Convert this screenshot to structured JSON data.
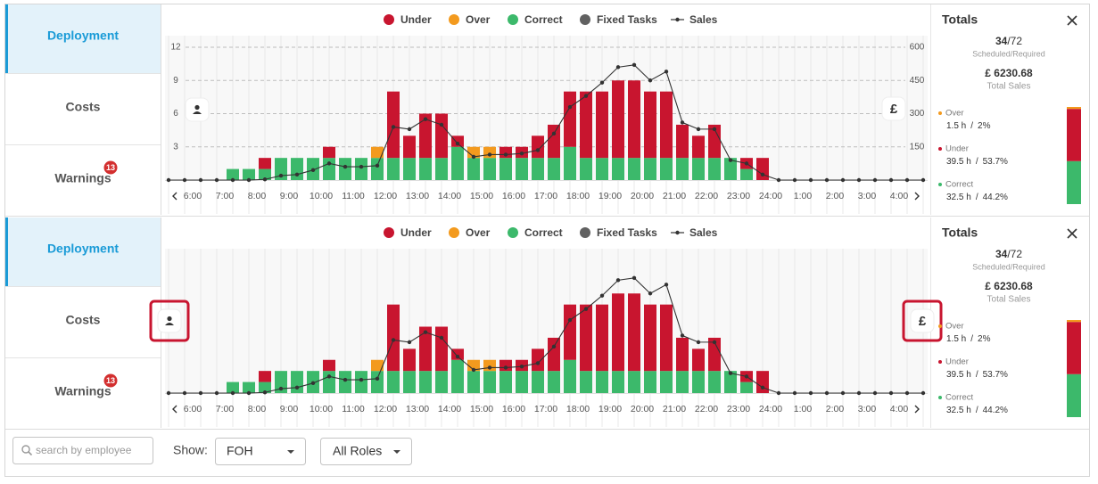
{
  "panels": [
    {
      "tabs": [
        {
          "label": "Deployment",
          "active": true
        },
        {
          "label": "Costs"
        },
        {
          "label": "Warnings",
          "badge": 13
        }
      ],
      "chart": {
        "type": "bar",
        "stacked": true,
        "x_labels": [
          "6:00",
          "7:00",
          "8:00",
          "9:00",
          "10:00",
          "11:00",
          "12:00",
          "13:00",
          "14:00",
          "15:00",
          "16:00",
          "17:00",
          "18:00",
          "19:00",
          "20:00",
          "21:00",
          "22:00",
          "23:00",
          "24:00",
          "1:00",
          "2:00",
          "3:00",
          "4:00"
        ],
        "series": [
          {
            "name": "Under",
            "color": "#c8152f",
            "values": [
              0,
              0,
              1,
              0,
              0,
              0,
              1,
              0,
              0,
              0,
              6,
              2,
              4,
              4,
              1,
              0,
              0,
              1,
              1,
              2,
              3,
              5,
              6,
              6,
              7,
              7,
              6,
              6,
              3,
              2,
              3,
              0,
              1,
              2
            ]
          },
          {
            "name": "Over",
            "color": "#f39a1e",
            "values": [
              0,
              0,
              0,
              0,
              0,
              0,
              0,
              0,
              0,
              1,
              0,
              0,
              0,
              0,
              0,
              1,
              1,
              0,
              0,
              0,
              0,
              0,
              0,
              0,
              0,
              0,
              0,
              0,
              0,
              0,
              0,
              0,
              0,
              0
            ]
          },
          {
            "name": "Correct",
            "color": "#3cb96b",
            "values": [
              1,
              1,
              1,
              2,
              2,
              2,
              2,
              2,
              2,
              2,
              2,
              2,
              2,
              2,
              3,
              2,
              2,
              2,
              2,
              2,
              2,
              3,
              2,
              2,
              2,
              2,
              2,
              2,
              2,
              2,
              2,
              2,
              1,
              0
            ]
          },
          {
            "name": "Fixed Tasks",
            "color": "#616161"
          }
        ],
        "line": {
          "name": "Sales",
          "color": "#333333",
          "axis": "y2",
          "values": [
            0,
            0,
            0,
            0,
            0,
            0,
            3,
            20,
            25,
            45,
            75,
            60,
            60,
            65,
            240,
            230,
            275,
            250,
            165,
            105,
            115,
            115,
            120,
            135,
            210,
            330,
            380,
            440,
            510,
            520,
            450,
            490,
            260,
            230,
            230,
            90,
            75,
            25,
            0,
            0,
            0,
            0,
            0,
            0,
            0,
            0,
            0,
            0
          ]
        },
        "ylim": [
          0,
          12
        ],
        "yticks": [
          3,
          6,
          9,
          12
        ],
        "y2lim": [
          0,
          600
        ],
        "y2ticks": [
          150,
          300,
          450,
          600
        ],
        "grid": true
      },
      "currency_icon": "£",
      "totals": {
        "title": "Totals",
        "scheduled": 34,
        "separator": "/",
        "required": 72,
        "scheduled_caption": "Scheduled/Required",
        "sales": "£ 6230.68",
        "sales_caption": "Total Sales",
        "breakdown": [
          {
            "name": "Over",
            "color": "#f39a1e",
            "hours_label": "1.5 h",
            "percent": 2,
            "percent_label": "2%"
          },
          {
            "name": "Under",
            "color": "#c8152f",
            "hours_label": "39.5 h",
            "percent": 53.7,
            "percent_label": "53.7%"
          },
          {
            "name": "Correct",
            "color": "#3cb96b",
            "hours_label": "32.5 h",
            "percent": 44.2,
            "percent_label": "44.2%"
          }
        ]
      }
    },
    {
      "tabs": [
        {
          "label": "Deployment",
          "active": true
        },
        {
          "label": "Costs"
        },
        {
          "label": "Warnings",
          "badge": 13
        }
      ],
      "chart": {
        "type": "bar",
        "stacked": true,
        "x_labels": [
          "6:00",
          "7:00",
          "8:00",
          "9:00",
          "10:00",
          "11:00",
          "12:00",
          "13:00",
          "14:00",
          "15:00",
          "16:00",
          "17:00",
          "18:00",
          "19:00",
          "20:00",
          "21:00",
          "22:00",
          "23:00",
          "24:00",
          "1:00",
          "2:00",
          "3:00",
          "4:00"
        ],
        "series": [
          {
            "name": "Under",
            "color": "#c8152f",
            "values": [
              0,
              0,
              1,
              0,
              0,
              0,
              1,
              0,
              0,
              0,
              6,
              2,
              4,
              4,
              1,
              0,
              0,
              1,
              1,
              2,
              3,
              5,
              6,
              6,
              7,
              7,
              6,
              6,
              3,
              2,
              3,
              0,
              1,
              2
            ]
          },
          {
            "name": "Over",
            "color": "#f39a1e",
            "values": [
              0,
              0,
              0,
              0,
              0,
              0,
              0,
              0,
              0,
              1,
              0,
              0,
              0,
              0,
              0,
              1,
              1,
              0,
              0,
              0,
              0,
              0,
              0,
              0,
              0,
              0,
              0,
              0,
              0,
              0,
              0,
              0,
              0,
              0
            ]
          },
          {
            "name": "Correct",
            "color": "#3cb96b",
            "values": [
              1,
              1,
              1,
              2,
              2,
              2,
              2,
              2,
              2,
              2,
              2,
              2,
              2,
              2,
              3,
              2,
              2,
              2,
              2,
              2,
              2,
              3,
              2,
              2,
              2,
              2,
              2,
              2,
              2,
              2,
              2,
              2,
              1,
              0
            ]
          },
          {
            "name": "Fixed Tasks",
            "color": "#616161"
          }
        ],
        "line": {
          "name": "Sales",
          "color": "#333333",
          "axis": "y2",
          "values": [
            0,
            0,
            0,
            0,
            0,
            0,
            3,
            20,
            25,
            45,
            75,
            60,
            60,
            65,
            240,
            230,
            275,
            250,
            165,
            105,
            115,
            115,
            120,
            135,
            210,
            330,
            380,
            440,
            510,
            520,
            450,
            490,
            260,
            230,
            230,
            90,
            75,
            25,
            0,
            0,
            0,
            0,
            0,
            0,
            0,
            0,
            0,
            0
          ]
        },
        "ylim": [
          0,
          12
        ],
        "y2lim": [
          0,
          600
        ],
        "grid": false
      },
      "currency_icon": "£",
      "totals": {
        "title": "Totals",
        "scheduled": 34,
        "separator": "/",
        "required": 72,
        "scheduled_caption": "Scheduled/Required",
        "sales": "£ 6230.68",
        "sales_caption": "Total Sales",
        "breakdown": [
          {
            "name": "Over",
            "color": "#f39a1e",
            "hours_label": "1.5 h",
            "percent": 2,
            "percent_label": "2%"
          },
          {
            "name": "Under",
            "color": "#c8152f",
            "hours_label": "39.5 h",
            "percent": 53.7,
            "percent_label": "53.7%"
          },
          {
            "name": "Correct",
            "color": "#3cb96b",
            "hours_label": "32.5 h",
            "percent": 44.2,
            "percent_label": "44.2%"
          }
        ]
      }
    }
  ],
  "filters": {
    "search_placeholder": "search by employee",
    "show_label": "Show:",
    "location": "FOH",
    "roles": "All Roles"
  }
}
